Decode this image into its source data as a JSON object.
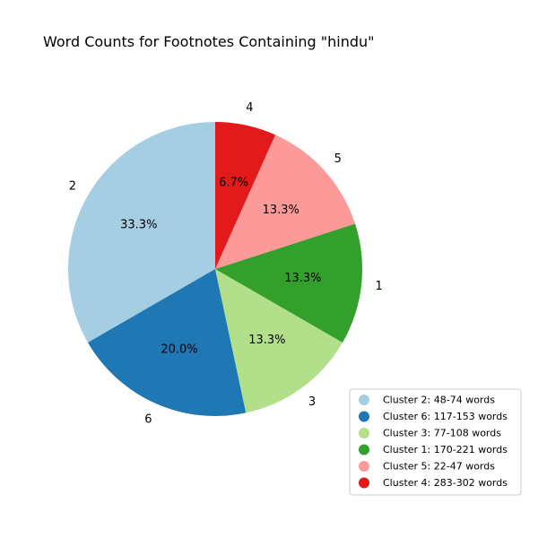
{
  "chart_data": {
    "type": "pie",
    "title": "Word Counts for Footnotes Containing \"hindu\"",
    "start_angle_deg": 90,
    "direction": "counterclockwise",
    "slices": [
      {
        "label": "2",
        "value": 33.3,
        "pct_label": "33.3%",
        "color": "#a6cee3",
        "legend": "Cluster 2: 48-74 words"
      },
      {
        "label": "6",
        "value": 20.0,
        "pct_label": "20.0%",
        "color": "#1f78b4",
        "legend": "Cluster 6: 117-153 words"
      },
      {
        "label": "3",
        "value": 13.3,
        "pct_label": "13.3%",
        "color": "#b2df8a",
        "legend": "Cluster 3: 77-108 words"
      },
      {
        "label": "1",
        "value": 13.3,
        "pct_label": "13.3%",
        "color": "#33a02c",
        "legend": "Cluster 1: 170-221 words"
      },
      {
        "label": "5",
        "value": 13.3,
        "pct_label": "13.3%",
        "color": "#fb9a99",
        "legend": "Cluster 5: 22-47 words"
      },
      {
        "label": "4",
        "value": 6.7,
        "pct_label": "6.7%",
        "color": "#e31a1c",
        "legend": "Cluster 4: 283-302 words"
      }
    ],
    "legend_position": "lower-right"
  }
}
